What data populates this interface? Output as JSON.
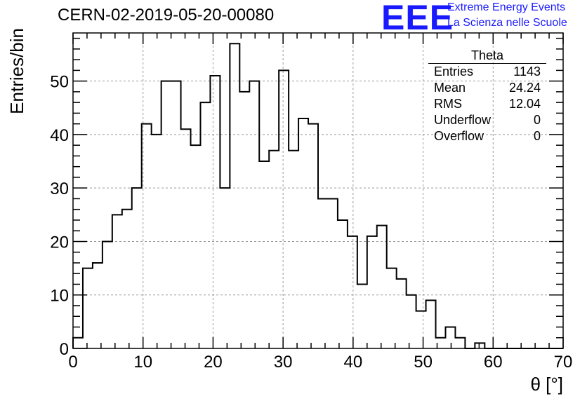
{
  "header": {
    "run_title": "CERN-02-2019-05-20-00080",
    "logo_text": "EEE",
    "logo_line1": "Extreme Energy Events",
    "logo_line2": "La Scienza nelle Scuole"
  },
  "stats_box": {
    "name": "Theta",
    "rows": [
      {
        "label": "Entries",
        "value": "1143"
      },
      {
        "label": "Mean",
        "value": "24.24"
      },
      {
        "label": "RMS",
        "value": "12.04"
      },
      {
        "label": "Underflow",
        "value": "0"
      },
      {
        "label": "Overflow",
        "value": "0"
      }
    ]
  },
  "colors": {
    "logo": "#1a1aff",
    "line": "#000000",
    "grid": "#999999"
  },
  "chart_data": {
    "type": "histogram",
    "xlabel": "θ [°]",
    "ylabel": "Entries/bin",
    "xlim": [
      0,
      70
    ],
    "ylim": [
      0,
      59
    ],
    "bin_width": 1.4,
    "grid": true,
    "x_ticks": [
      0,
      10,
      20,
      30,
      40,
      50,
      60,
      70
    ],
    "y_ticks": [
      0,
      10,
      20,
      30,
      40,
      50
    ],
    "values": [
      2,
      15,
      16,
      20,
      25,
      26,
      30,
      42,
      40,
      50,
      50,
      41,
      38,
      46,
      51,
      30,
      57,
      48,
      50,
      35,
      37,
      52,
      37,
      43,
      42,
      28,
      28,
      24,
      21,
      12,
      21,
      23,
      15,
      13,
      10,
      7,
      9,
      2,
      4,
      2,
      0,
      1,
      0,
      0,
      0,
      0,
      0,
      0,
      0,
      0
    ]
  }
}
